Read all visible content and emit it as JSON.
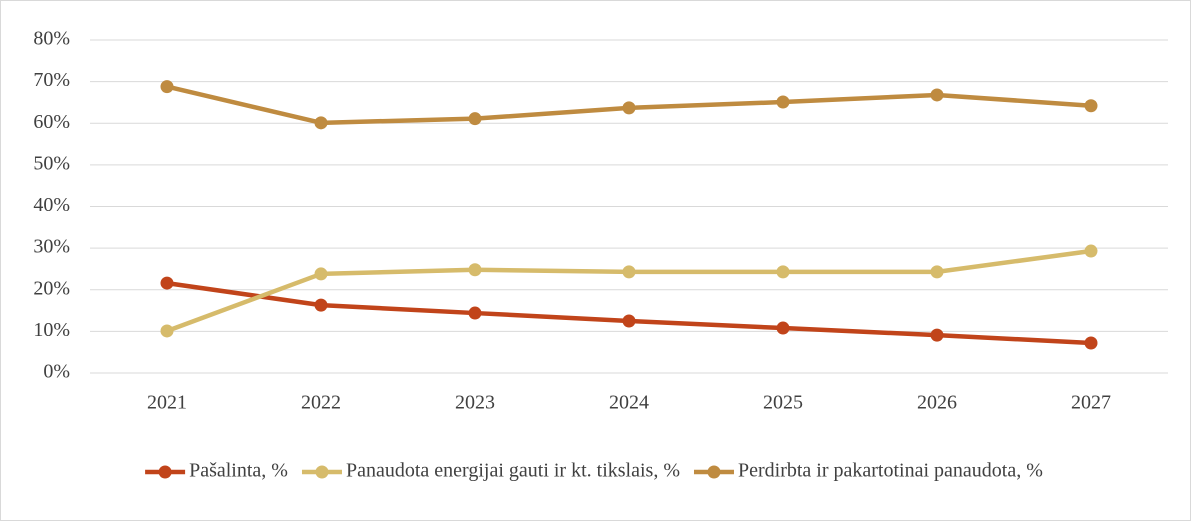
{
  "chart_data": {
    "type": "line",
    "categories": [
      "2021",
      "2022",
      "2023",
      "2024",
      "2025",
      "2026",
      "2027"
    ],
    "series": [
      {
        "name": "Pašalinta, %",
        "color": "#c1441a",
        "values": [
          21.6,
          16.3,
          14.4,
          12.5,
          10.8,
          9.1,
          7.2
        ]
      },
      {
        "name": "Panaudota energijai gauti ir kt. tikslais, %",
        "color": "#d6bb6b",
        "values": [
          10.1,
          23.8,
          24.8,
          24.3,
          24.3,
          24.3,
          29.3
        ]
      },
      {
        "name": "Perdirbta ir pakartotinai panaudota, %",
        "color": "#bf8b40",
        "values": [
          68.8,
          60.1,
          61.1,
          63.7,
          65.1,
          66.8,
          64.2
        ]
      }
    ],
    "ylim": [
      0,
      80
    ],
    "yticks": [
      {
        "value": 0,
        "label": "0%"
      },
      {
        "value": 10,
        "label": "10%"
      },
      {
        "value": 20,
        "label": "20%"
      },
      {
        "value": 30,
        "label": "30%"
      },
      {
        "value": 40,
        "label": "40%"
      },
      {
        "value": 50,
        "label": "50%"
      },
      {
        "value": 60,
        "label": "60%"
      },
      {
        "value": 70,
        "label": "70%"
      },
      {
        "value": 80,
        "label": "80%"
      }
    ],
    "grid": true,
    "legend": "bottom"
  }
}
